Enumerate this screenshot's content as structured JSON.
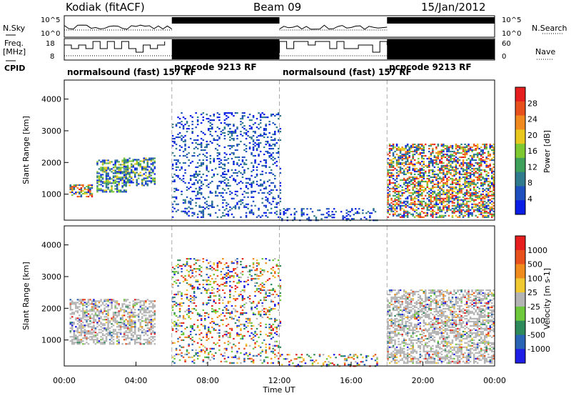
{
  "header": {
    "station": "Kodiak (fitACF)",
    "beam": "Beam 09",
    "date": "15/Jan/2012"
  },
  "side_labels": {
    "nsky": "N.Sky",
    "freq_line1": "Freq.",
    "freq_line2": "[MHz]",
    "cpid": "CPID",
    "nsearch": "N.Search",
    "nave": "Nave"
  },
  "top_ticks": {
    "noise_left": [
      "10^5",
      "10^0"
    ],
    "noise_right": [
      "10^5",
      "10^0"
    ],
    "freq_left": [
      "18",
      "8"
    ],
    "nave_right": [
      "60",
      "0"
    ]
  },
  "cpid_segments": [
    {
      "label": "normalsound (fast) 157 RF",
      "start": 0,
      "end": 6,
      "solid": false
    },
    {
      "label": "pcpcode 9213 RF",
      "start": 6,
      "end": 12,
      "solid": true
    },
    {
      "label": "normalsound (fast) 157 RF",
      "start": 12,
      "end": 18,
      "solid": false
    },
    {
      "label": "pcpcode 9213 RF",
      "start": 18,
      "end": 24,
      "solid": true
    }
  ],
  "axes": {
    "ylabel": "Slant Range [km]",
    "xlabel": "Time UT",
    "y_ticks": [
      "1000",
      "2000",
      "3000",
      "4000"
    ],
    "x_ticks": [
      "00:00",
      "04:00",
      "08:00",
      "12:00",
      "16:00",
      "20:00",
      "00:00"
    ]
  },
  "chart_data": [
    {
      "type": "heatmap",
      "title": "",
      "xlabel": "Time UT",
      "ylabel": "Slant Range [km]",
      "xlim": [
        0,
        24
      ],
      "ylim": [
        180,
        4600
      ],
      "colorbar": {
        "label": "Power [dB]",
        "tick_labels": [
          "4",
          "8",
          "12",
          "16",
          "20",
          "24",
          "28"
        ],
        "colors": [
          "#0a1ee6",
          "#1e4fbf",
          "#2f7a8c",
          "#3ea05a",
          "#7ec832",
          "#e8c81e",
          "#f08a1e",
          "#e8501e",
          "#e61e1e"
        ]
      },
      "regions": [
        {
          "name": "morning-blob-1",
          "t": [
            0.3,
            1.6
          ],
          "r": [
            950,
            1350
          ],
          "level": "high"
        },
        {
          "name": "morning-blob-2",
          "t": [
            1.8,
            3.5
          ],
          "r": [
            1100,
            2100
          ],
          "level": "mid"
        },
        {
          "name": "morning-blob-3",
          "t": [
            3.3,
            5.0
          ],
          "r": [
            1300,
            2200
          ],
          "level": "mid"
        },
        {
          "name": "scatter-06-12",
          "t": [
            6,
            12
          ],
          "r": [
            300,
            3600
          ],
          "level": "low"
        },
        {
          "name": "ground-12-18",
          "t": [
            12,
            17.5
          ],
          "r": [
            200,
            600
          ],
          "level": "low"
        },
        {
          "name": "evening-band",
          "t": [
            18,
            24
          ],
          "r": [
            300,
            2600
          ],
          "level": "high"
        }
      ]
    },
    {
      "type": "heatmap",
      "title": "",
      "xlabel": "Time UT",
      "ylabel": "Slant Range [km]",
      "xlim": [
        0,
        24
      ],
      "ylim": [
        180,
        4600
      ],
      "colorbar": {
        "label": "Velocity [m s-1]",
        "tick_labels": [
          "1000",
          "500",
          "100",
          "25",
          "-25",
          "-100",
          "-500",
          "-1000"
        ],
        "colors": [
          "#1e1ee6",
          "#2a64b4",
          "#2e8a5a",
          "#6ec83c",
          "#b4b4b4",
          "#f0c832",
          "#f08c1e",
          "#e8501e",
          "#e61e1e"
        ]
      },
      "regions": [
        {
          "name": "morning-ground",
          "t": [
            0.3,
            5.0
          ],
          "r": [
            900,
            2300
          ],
          "level": "gray"
        },
        {
          "name": "scatter-06-12",
          "t": [
            6,
            12
          ],
          "r": [
            300,
            3600
          ],
          "level": "mixed"
        },
        {
          "name": "ground-12-18",
          "t": [
            12,
            17.5
          ],
          "r": [
            200,
            600
          ],
          "level": "mixed"
        },
        {
          "name": "evening-band",
          "t": [
            18,
            24
          ],
          "r": [
            300,
            2600
          ],
          "level": "gray"
        }
      ]
    }
  ]
}
